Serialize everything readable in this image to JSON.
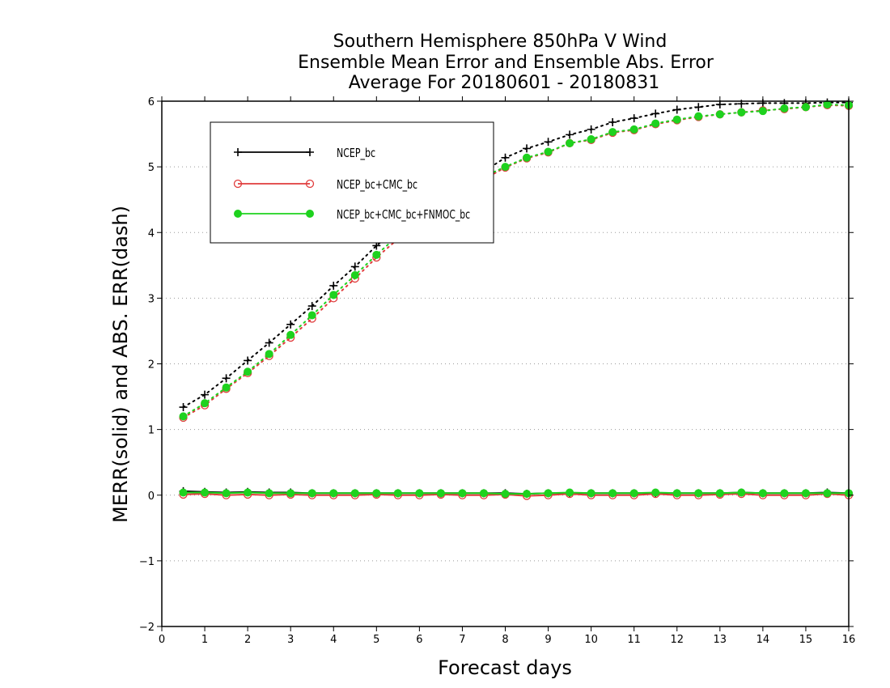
{
  "chart_data": {
    "type": "line",
    "title": [
      "Southern Hemisphere 850hPa V Wind",
      "Ensemble Mean Error and Ensemble Abs. Error",
      "Average For 20180601 - 20180831"
    ],
    "xlabel": "Forecast days",
    "ylabel": "MERR(solid) and ABS. ERR(dash)",
    "xlim": [
      0,
      16
    ],
    "ylim": [
      -2,
      6
    ],
    "x_ticks": [
      0,
      1,
      2,
      3,
      4,
      5,
      6,
      7,
      8,
      9,
      10,
      11,
      12,
      13,
      14,
      15,
      16
    ],
    "y_ticks": [
      -2,
      -1,
      0,
      1,
      2,
      3,
      4,
      5,
      6
    ],
    "grid": "horizontal dotted",
    "legend_placement": "top-left",
    "x": [
      0.5,
      1,
      1.5,
      2,
      2.5,
      3,
      3.5,
      4,
      4.5,
      5,
      5.5,
      6,
      6.5,
      7,
      7.5,
      8,
      8.5,
      9,
      9.5,
      10,
      10.5,
      11,
      11.5,
      12,
      12.5,
      13,
      13.5,
      14,
      14.5,
      15,
      15.5,
      16
    ],
    "series": [
      {
        "name": "NCEP_bc",
        "color": "#000000",
        "marker": "plus",
        "abs_error": [
          1.34,
          1.53,
          1.78,
          2.05,
          2.32,
          2.6,
          2.88,
          3.19,
          3.48,
          3.8,
          4.07,
          4.32,
          4.55,
          4.75,
          4.93,
          5.14,
          5.28,
          5.38,
          5.49,
          5.57,
          5.68,
          5.74,
          5.81,
          5.87,
          5.91,
          5.95,
          5.96,
          5.97,
          5.97,
          5.97,
          5.98,
          5.98
        ],
        "mean_error": [
          0.06,
          0.05,
          0.04,
          0.05,
          0.04,
          0.04,
          0.03,
          0.03,
          0.03,
          0.03,
          0.03,
          0.03,
          0.03,
          0.03,
          0.03,
          0.03,
          0.02,
          0.03,
          0.03,
          0.03,
          0.03,
          0.03,
          0.03,
          0.03,
          0.03,
          0.03,
          0.04,
          0.03,
          0.03,
          0.03,
          0.04,
          0.03
        ]
      },
      {
        "name": "NCEP_bc+CMC_bc",
        "color": "#e03c3c",
        "marker": "open-circle",
        "abs_error": [
          1.18,
          1.37,
          1.62,
          1.86,
          2.12,
          2.4,
          2.69,
          3.0,
          3.3,
          3.62,
          3.9,
          4.15,
          4.39,
          4.61,
          4.81,
          4.99,
          5.13,
          5.22,
          5.36,
          5.41,
          5.52,
          5.56,
          5.65,
          5.71,
          5.76,
          5.8,
          5.83,
          5.86,
          5.88,
          5.91,
          5.94,
          5.93
        ],
        "mean_error": [
          0.01,
          0.02,
          0.0,
          0.01,
          0.0,
          0.01,
          0.0,
          0.0,
          0.0,
          0.01,
          0.0,
          0.0,
          0.01,
          0.0,
          0.0,
          0.01,
          -0.01,
          0.0,
          0.02,
          0.0,
          0.0,
          0.0,
          0.02,
          0.0,
          0.0,
          0.01,
          0.02,
          0.0,
          0.0,
          0.0,
          0.02,
          0.0
        ]
      },
      {
        "name": "NCEP_bc+CMC_bc+FNMOC_bc",
        "color": "#1ed21e",
        "marker": "filled-circle",
        "abs_error": [
          1.2,
          1.4,
          1.64,
          1.88,
          2.15,
          2.44,
          2.74,
          3.05,
          3.35,
          3.66,
          3.95,
          4.2,
          4.45,
          4.67,
          4.85,
          5.0,
          5.14,
          5.23,
          5.36,
          5.42,
          5.53,
          5.57,
          5.66,
          5.72,
          5.77,
          5.8,
          5.83,
          5.85,
          5.89,
          5.91,
          5.95,
          5.94
        ],
        "mean_error": [
          0.04,
          0.04,
          0.03,
          0.04,
          0.03,
          0.03,
          0.03,
          0.03,
          0.03,
          0.03,
          0.03,
          0.03,
          0.03,
          0.03,
          0.03,
          0.02,
          0.02,
          0.03,
          0.04,
          0.03,
          0.03,
          0.03,
          0.04,
          0.03,
          0.03,
          0.03,
          0.04,
          0.03,
          0.03,
          0.03,
          0.03,
          0.03
        ]
      }
    ]
  }
}
